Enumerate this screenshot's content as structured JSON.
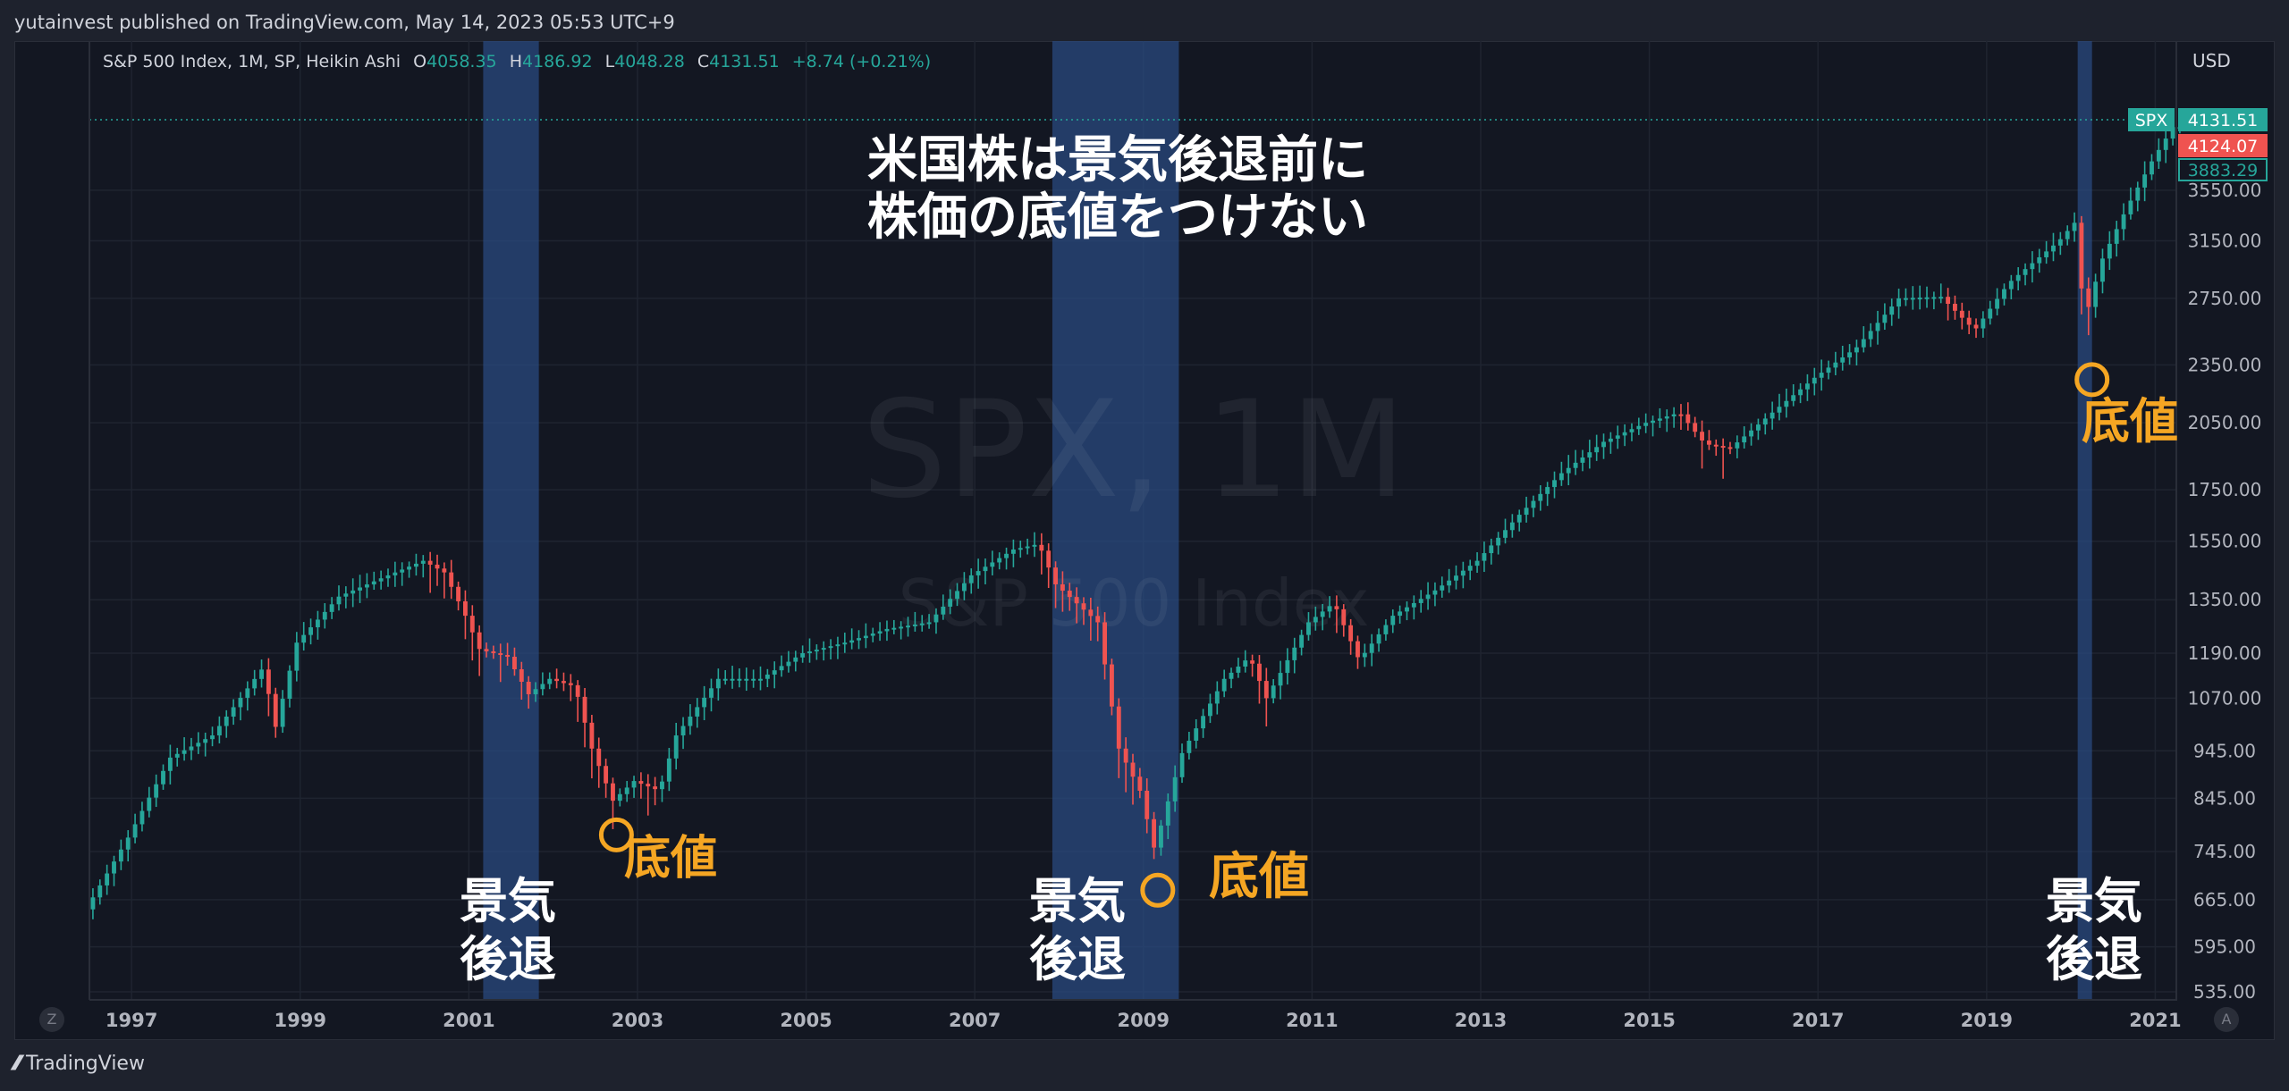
{
  "header": {
    "published": "yutainvest published on TradingView.com, May 14, 2023 05:53 UTC+9"
  },
  "legend": {
    "symbol": "S&P 500 Index, 1M, SP, Heikin Ashi",
    "o_label": "O",
    "o": "4058.35",
    "h_label": "H",
    "h": "4186.92",
    "l_label": "L",
    "l": "4048.28",
    "c_label": "C",
    "c": "4131.51",
    "change": "+8.74 (+0.21%)"
  },
  "axis": {
    "currency": "USD"
  },
  "price_tags": [
    {
      "label": "SPX",
      "value": "4131.51",
      "color": "#26a69a"
    },
    {
      "value": "4124.07",
      "color": "#ef5350"
    },
    {
      "value": "3883.29",
      "color": "#26a69a",
      "outline": true
    }
  ],
  "watermark": {
    "symbol": "SPX, 1M",
    "name": "S&P 500 Index"
  },
  "annotations": {
    "headline": [
      "米国株は景気後退前に",
      "株価の底値をつけない"
    ],
    "recession_labels": [
      [
        "景気",
        "後退"
      ],
      [
        "景気",
        "後退"
      ],
      [
        "景気",
        "後退"
      ]
    ],
    "bottom_labels": [
      "底値",
      "底値",
      "底値"
    ]
  },
  "footer": {
    "brand": "TradingView",
    "z": "Z",
    "a": "A"
  },
  "colors": {
    "up": "#26a69a",
    "down": "#ef5350",
    "recession": "#2a4a7f",
    "annotation": "#f5a623",
    "text_white": "#ffffff"
  },
  "chart_data": {
    "type": "candlestick",
    "style": "Heikin Ashi",
    "interval": "1M",
    "xlim": [
      1996.5,
      2021.25
    ],
    "x_ticks": [
      1997,
      1999,
      2001,
      2003,
      2005,
      2007,
      2009,
      2011,
      2013,
      2015,
      2017,
      2019,
      2021
    ],
    "x_tick_labels": [
      "1997",
      "1999",
      "2001",
      "2003",
      "2005",
      "2007",
      "2009",
      "2011",
      "2013",
      "2015",
      "2017",
      "2019",
      "2021"
    ],
    "y_scale": "log",
    "ylim": [
      535,
      4300
    ],
    "y_ticks": [
      535,
      595,
      665,
      745,
      845,
      945,
      1070,
      1190,
      1350,
      1550,
      1750,
      2050,
      2350,
      2750,
      3150,
      3550
    ],
    "y_tick_labels": [
      "535.00",
      "595.00",
      "665.00",
      "745.00",
      "845.00",
      "945.00",
      "1070.00",
      "1190.00",
      "1350.00",
      "1550.00",
      "1750.00",
      "2050.00",
      "2350.00",
      "2750.00",
      "3150.00",
      "3550.00"
    ],
    "last_price": 4131.51,
    "recessions": [
      {
        "start": 2001.17,
        "end": 2001.83
      },
      {
        "start": 2007.92,
        "end": 2009.42
      },
      {
        "start": 2020.08,
        "end": 2020.25
      }
    ],
    "bottom_markers": [
      {
        "x": 2002.75,
        "y": 775
      },
      {
        "x": 2009.17,
        "y": 680
      },
      {
        "x": 2020.25,
        "y": 2270
      }
    ],
    "monthly_close_path": [
      [
        1996.5,
        650
      ],
      [
        1997.0,
        770
      ],
      [
        1997.5,
        930
      ],
      [
        1998.0,
        980
      ],
      [
        1998.6,
        1150
      ],
      [
        1998.75,
        1000
      ],
      [
        1999.0,
        1220
      ],
      [
        1999.5,
        1360
      ],
      [
        2000.0,
        1420
      ],
      [
        2000.5,
        1480
      ],
      [
        2000.75,
        1440
      ],
      [
        2001.0,
        1300
      ],
      [
        2001.17,
        1200
      ],
      [
        2001.5,
        1180
      ],
      [
        2001.75,
        1080
      ],
      [
        2002.0,
        1120
      ],
      [
        2002.3,
        1100
      ],
      [
        2002.5,
        950
      ],
      [
        2002.75,
        840
      ],
      [
        2003.0,
        880
      ],
      [
        2003.3,
        860
      ],
      [
        2003.5,
        980
      ],
      [
        2004.0,
        1120
      ],
      [
        2004.5,
        1120
      ],
      [
        2005.0,
        1190
      ],
      [
        2005.5,
        1220
      ],
      [
        2006.0,
        1260
      ],
      [
        2006.5,
        1280
      ],
      [
        2007.0,
        1430
      ],
      [
        2007.5,
        1520
      ],
      [
        2007.8,
        1540
      ],
      [
        2008.0,
        1400
      ],
      [
        2008.5,
        1280
      ],
      [
        2008.75,
        950
      ],
      [
        2009.0,
        860
      ],
      [
        2009.17,
        750
      ],
      [
        2009.5,
        940
      ],
      [
        2010.0,
        1120
      ],
      [
        2010.3,
        1180
      ],
      [
        2010.5,
        1070
      ],
      [
        2011.0,
        1280
      ],
      [
        2011.3,
        1340
      ],
      [
        2011.6,
        1170
      ],
      [
        2012.0,
        1300
      ],
      [
        2012.5,
        1380
      ],
      [
        2013.0,
        1480
      ],
      [
        2013.5,
        1650
      ],
      [
        2014.0,
        1820
      ],
      [
        2014.5,
        1960
      ],
      [
        2015.0,
        2050
      ],
      [
        2015.4,
        2100
      ],
      [
        2015.7,
        1950
      ],
      [
        2016.0,
        1930
      ],
      [
        2016.5,
        2100
      ],
      [
        2017.0,
        2280
      ],
      [
        2017.5,
        2450
      ],
      [
        2018.0,
        2750
      ],
      [
        2018.5,
        2760
      ],
      [
        2018.9,
        2550
      ],
      [
        2019.3,
        2850
      ],
      [
        2019.9,
        3150
      ],
      [
        2020.1,
        3300
      ],
      [
        2020.2,
        2600
      ],
      [
        2020.4,
        3000
      ],
      [
        2020.7,
        3400
      ],
      [
        2021.0,
        3800
      ],
      [
        2021.25,
        4120
      ]
    ]
  }
}
